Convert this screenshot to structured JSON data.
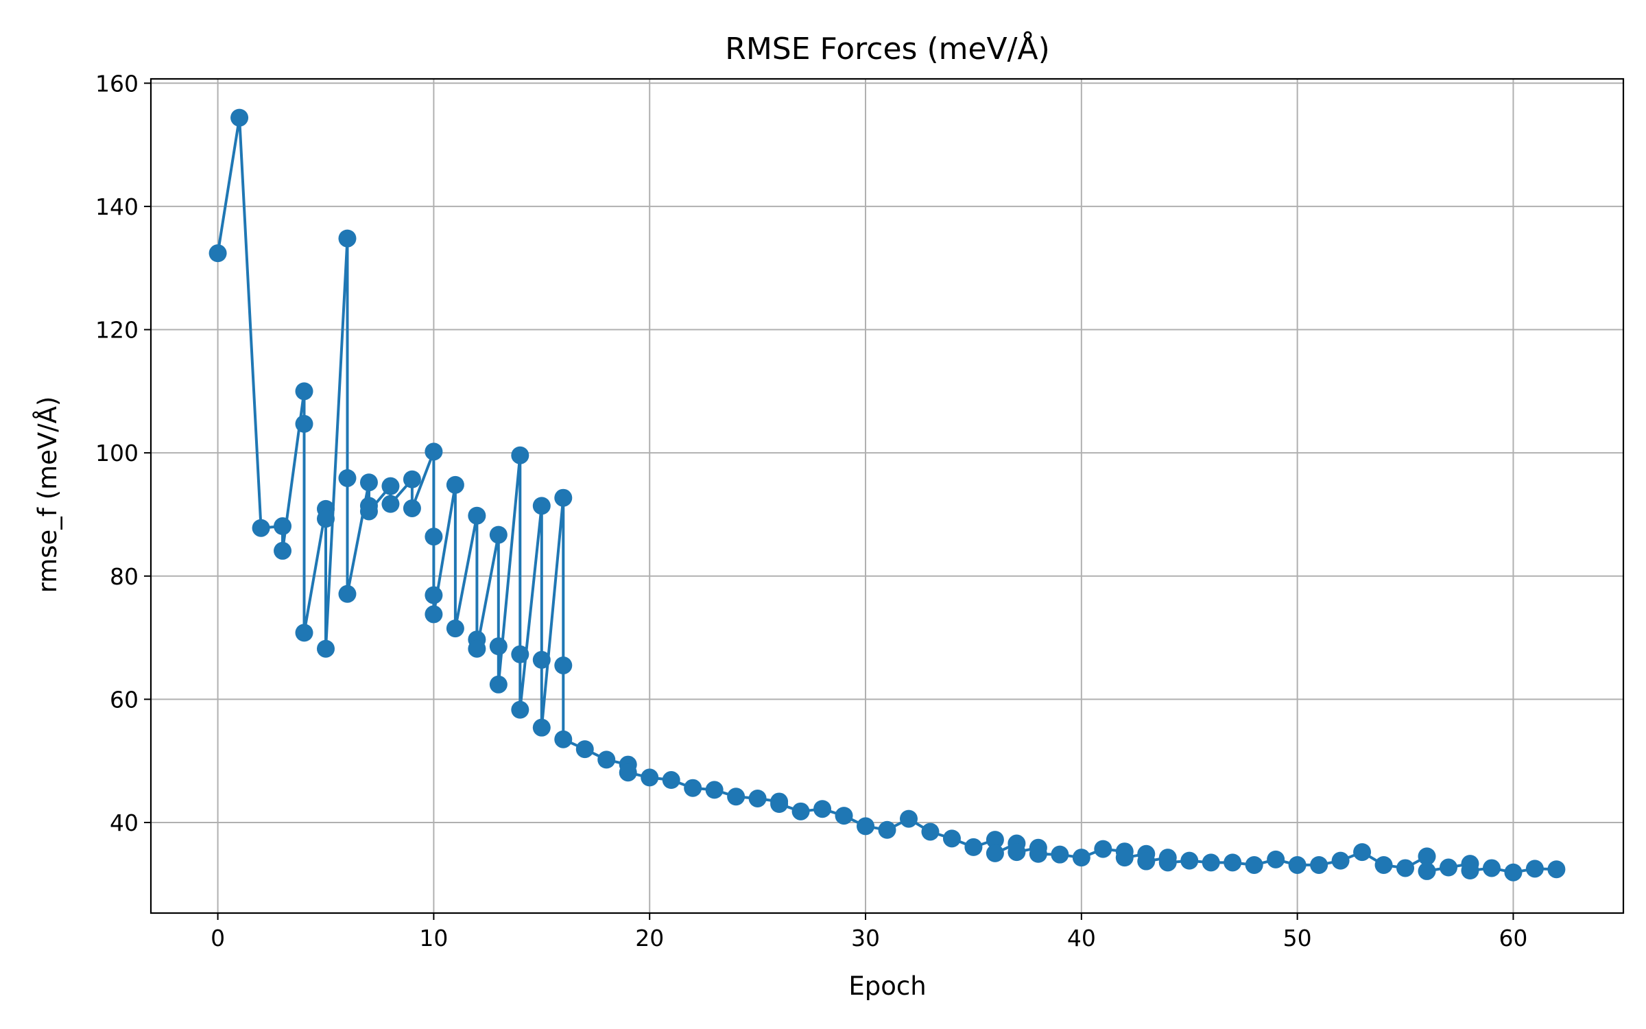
{
  "chart_data": {
    "type": "line",
    "title": "RMSE Forces (meV/Å)",
    "xlabel": "Epoch",
    "ylabel": "rmse_f (meV/Å)",
    "xlim": [
      -3.1,
      65.1
    ],
    "ylim": [
      25.3,
      160.7
    ],
    "xticks": [
      0,
      10,
      20,
      30,
      40,
      50,
      60
    ],
    "yticks": [
      40,
      60,
      80,
      100,
      120,
      140,
      160
    ],
    "grid": true,
    "marker": "circle",
    "series": [
      {
        "color": "#1f77b4",
        "points": [
          [
            0,
            132.4
          ],
          [
            1,
            154.4
          ],
          [
            2,
            87.8
          ],
          [
            3,
            88.1
          ],
          [
            3,
            84.1
          ],
          [
            4,
            110.0
          ],
          [
            4,
            104.7
          ],
          [
            4,
            70.8
          ],
          [
            5,
            90.9
          ],
          [
            5,
            89.3
          ],
          [
            5,
            68.2
          ],
          [
            6,
            134.8
          ],
          [
            6,
            95.9
          ],
          [
            6,
            77.1
          ],
          [
            7,
            95.2
          ],
          [
            7,
            91.4
          ],
          [
            7,
            90.5
          ],
          [
            8,
            94.6
          ],
          [
            8,
            91.7
          ],
          [
            9,
            95.7
          ],
          [
            9,
            91.0
          ],
          [
            10,
            100.2
          ],
          [
            10,
            86.4
          ],
          [
            10,
            76.9
          ],
          [
            10,
            73.8
          ],
          [
            11,
            94.8
          ],
          [
            11,
            71.5
          ],
          [
            12,
            89.8
          ],
          [
            12,
            69.7
          ],
          [
            12,
            68.2
          ],
          [
            13,
            86.7
          ],
          [
            13,
            68.6
          ],
          [
            13,
            62.4
          ],
          [
            14,
            99.6
          ],
          [
            14,
            67.3
          ],
          [
            14,
            58.3
          ],
          [
            15,
            91.4
          ],
          [
            15,
            66.4
          ],
          [
            15,
            55.4
          ],
          [
            16,
            92.7
          ],
          [
            16,
            65.5
          ],
          [
            16,
            53.5
          ],
          [
            17,
            51.9
          ],
          [
            18,
            50.2
          ],
          [
            19,
            49.4
          ],
          [
            19,
            48.1
          ],
          [
            20,
            47.3
          ],
          [
            21,
            46.9
          ],
          [
            22,
            45.6
          ],
          [
            23,
            45.3
          ],
          [
            24,
            44.2
          ],
          [
            25,
            43.9
          ],
          [
            26,
            43.4
          ],
          [
            26,
            43.0
          ],
          [
            27,
            41.8
          ],
          [
            28,
            42.2
          ],
          [
            29,
            41.1
          ],
          [
            30,
            39.4
          ],
          [
            31,
            38.8
          ],
          [
            32,
            40.6
          ],
          [
            33,
            38.5
          ],
          [
            34,
            37.4
          ],
          [
            35,
            36.0
          ],
          [
            36,
            37.2
          ],
          [
            36,
            35.0
          ],
          [
            37,
            36.6
          ],
          [
            37,
            35.2
          ],
          [
            38,
            35.9
          ],
          [
            38,
            34.9
          ],
          [
            39,
            34.8
          ],
          [
            40,
            34.3
          ],
          [
            41,
            35.7
          ],
          [
            42,
            35.3
          ],
          [
            42,
            34.3
          ],
          [
            43,
            34.9
          ],
          [
            43,
            33.7
          ],
          [
            44,
            34.3
          ],
          [
            44,
            33.5
          ],
          [
            45,
            33.8
          ],
          [
            46,
            33.5
          ],
          [
            47,
            33.5
          ],
          [
            48,
            33.1
          ],
          [
            49,
            34.0
          ],
          [
            50,
            33.1
          ],
          [
            51,
            33.1
          ],
          [
            52,
            33.8
          ],
          [
            53,
            35.2
          ],
          [
            54,
            33.1
          ],
          [
            55,
            32.6
          ],
          [
            56,
            34.5
          ],
          [
            56,
            32.1
          ],
          [
            57,
            32.7
          ],
          [
            58,
            33.3
          ],
          [
            58,
            32.2
          ],
          [
            59,
            32.6
          ],
          [
            60,
            31.9
          ],
          [
            61,
            32.5
          ],
          [
            62,
            32.4
          ]
        ]
      }
    ]
  }
}
